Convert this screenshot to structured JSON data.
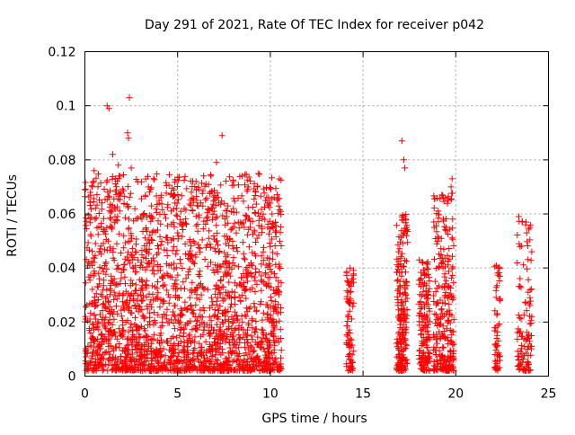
{
  "chart_data": {
    "type": "scatter",
    "title": "Day 291 of 2021, Rate Of TEC Index for receiver p042",
    "xlabel": "GPS time / hours",
    "ylabel": "ROTI / TECUs",
    "xlim": [
      0,
      25
    ],
    "ylim": [
      0,
      0.12
    ],
    "xticks": [
      0,
      5,
      10,
      15,
      20,
      25
    ],
    "xtick_labels": [
      "0",
      "5",
      "10",
      "15",
      "20",
      "25"
    ],
    "yticks": [
      0,
      0.02,
      0.04,
      0.06,
      0.08,
      0.1,
      0.12
    ],
    "ytick_labels": [
      "0",
      "0.02",
      "0.04",
      "0.06",
      "0.08",
      "0.1",
      "0.12"
    ],
    "grid": true,
    "marker": "+",
    "color": "#ff0000",
    "clusters": [
      {
        "x_start": 0.0,
        "x_end": 10.6,
        "y_max": 0.075,
        "density": 2200
      },
      {
        "x_start": 14.1,
        "x_end": 14.5,
        "y_max": 0.04,
        "density": 80
      },
      {
        "x_start": 16.8,
        "x_end": 17.4,
        "y_max": 0.06,
        "density": 200
      },
      {
        "x_start": 18.0,
        "x_end": 18.6,
        "y_max": 0.043,
        "density": 150
      },
      {
        "x_start": 18.8,
        "x_end": 19.9,
        "y_max": 0.068,
        "density": 260
      },
      {
        "x_start": 22.1,
        "x_end": 22.4,
        "y_max": 0.042,
        "density": 60
      },
      {
        "x_start": 23.3,
        "x_end": 24.1,
        "y_max": 0.058,
        "density": 110
      }
    ],
    "points": [
      [
        1.2,
        0.1
      ],
      [
        1.3,
        0.099
      ],
      [
        2.4,
        0.103
      ],
      [
        2.3,
        0.09
      ],
      [
        2.35,
        0.088
      ],
      [
        1.5,
        0.082
      ],
      [
        2.5,
        0.077
      ],
      [
        7.4,
        0.089
      ],
      [
        7.1,
        0.079
      ],
      [
        17.1,
        0.087
      ],
      [
        17.2,
        0.08
      ],
      [
        17.25,
        0.077
      ],
      [
        19.8,
        0.073
      ],
      [
        19.75,
        0.07
      ],
      [
        23.4,
        0.059
      ],
      [
        0.5,
        0.076
      ],
      [
        0.4,
        0.07
      ],
      [
        1.8,
        0.078
      ],
      [
        1.9,
        0.074
      ],
      [
        4.0,
        0.065
      ],
      [
        4.1,
        0.066
      ],
      [
        6.0,
        0.072
      ],
      [
        6.8,
        0.074
      ],
      [
        8.0,
        0.072
      ],
      [
        9.3,
        0.07
      ],
      [
        9.8,
        0.066
      ],
      [
        9.9,
        0.066
      ],
      [
        10.0,
        0.064
      ],
      [
        24.0,
        0.055
      ],
      [
        24.1,
        0.046
      ],
      [
        24.0,
        0.029
      ],
      [
        24.1,
        0.022
      ],
      [
        23.9,
        0.011
      ],
      [
        22.3,
        0.04
      ],
      [
        14.3,
        0.04
      ]
    ]
  }
}
